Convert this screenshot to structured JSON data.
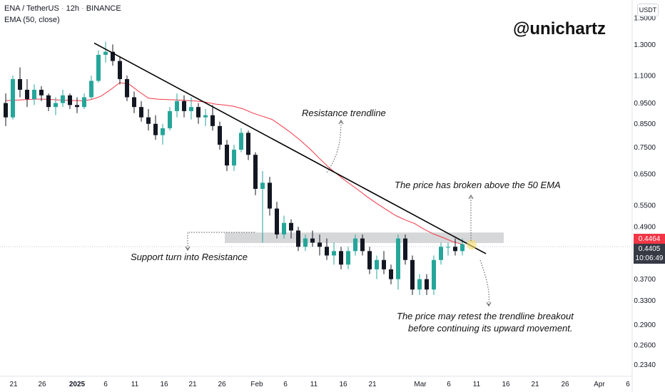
{
  "header": {
    "symbol": "ENA / TetherUS",
    "interval": "12h",
    "exchange": "BINANCE",
    "indicator": "EMA (50, close)"
  },
  "watermark": "@unichartz",
  "currency": "USDT",
  "price_labels": {
    "last": "0.4464",
    "current": "0.4405",
    "countdown": "10:06:49"
  },
  "colors": {
    "up": "#26a69a",
    "down": "#131722",
    "ema": "#f23645",
    "trendline": "#000000",
    "zone": "#c8c9cc"
  },
  "annotations": {
    "resistance_trendline": "Resistance trendline",
    "ema_break": "The price has broken above the 50 EMA",
    "support_resistance": "Support turn into Resistance",
    "retest_line1": "The price may retest the trendline breakout",
    "retest_line2": "before continuing its upward movement."
  },
  "chart_data": {
    "type": "candlestick",
    "y_scale": "log",
    "y_ticks": [
      "1.5000",
      "1.3000",
      "1.1000",
      "0.9500",
      "0.8500",
      "0.7500",
      "0.6500",
      "0.5500",
      "0.4900",
      "0.3700",
      "0.3300",
      "0.2900",
      "0.2600",
      "0.2340"
    ],
    "x_ticks": [
      "21",
      "26",
      "2025",
      "6",
      "11",
      "16",
      "21",
      "26",
      "Feb",
      "6",
      "11",
      "16",
      "21",
      "Mar",
      "6",
      "11",
      "16",
      "21",
      "26",
      "Apr",
      "6"
    ],
    "ylim": [
      0.225,
      1.6
    ],
    "ema_period": 50,
    "trendline": {
      "start": 1.31,
      "end": 0.424
    },
    "zone": {
      "top": 0.475,
      "bottom": 0.449
    },
    "ema": [
      0.962,
      0.965,
      0.967,
      0.97,
      0.97,
      0.967,
      0.965,
      0.963,
      0.962,
      0.968,
      0.985,
      1.02,
      1.06,
      1.05,
      1.01,
      0.975,
      0.97,
      0.968,
      0.966,
      0.963,
      0.96,
      0.955,
      0.945,
      0.94,
      0.933,
      0.92,
      0.9,
      0.885,
      0.87,
      0.84,
      0.81,
      0.777,
      0.742,
      0.705,
      0.672,
      0.645,
      0.62,
      0.598,
      0.575,
      0.555,
      0.537,
      0.52,
      0.508,
      0.498,
      0.483,
      0.471,
      0.462,
      0.452,
      0.446
    ],
    "candles": [
      [
        0.95,
        1.0,
        0.84,
        0.88
      ],
      [
        0.88,
        1.1,
        0.87,
        1.08
      ],
      [
        1.08,
        1.15,
        0.98,
        1.02
      ],
      [
        1.02,
        1.08,
        0.93,
        0.97
      ],
      [
        0.97,
        1.05,
        0.94,
        1.02
      ],
      [
        1.02,
        1.04,
        0.96,
        0.99
      ],
      [
        0.99,
        1.0,
        0.91,
        0.93
      ],
      [
        0.93,
        0.98,
        0.89,
        0.95
      ],
      [
        0.95,
        1.02,
        0.93,
        0.99
      ],
      [
        0.99,
        1.0,
        0.92,
        0.94
      ],
      [
        0.94,
        0.98,
        0.9,
        0.93
      ],
      [
        0.93,
        1.0,
        0.92,
        0.98
      ],
      [
        0.98,
        1.1,
        0.97,
        1.07
      ],
      [
        1.07,
        1.26,
        1.06,
        1.23
      ],
      [
        1.23,
        1.32,
        1.18,
        1.25
      ],
      [
        1.25,
        1.3,
        1.16,
        1.19
      ],
      [
        1.19,
        1.22,
        1.05,
        1.08
      ],
      [
        1.08,
        1.1,
        0.96,
        0.98
      ],
      [
        0.98,
        1.01,
        0.9,
        0.93
      ],
      [
        0.93,
        0.96,
        0.86,
        0.88
      ],
      [
        0.88,
        0.92,
        0.82,
        0.85
      ],
      [
        0.85,
        0.89,
        0.78,
        0.8
      ],
      [
        0.8,
        0.85,
        0.76,
        0.83
      ],
      [
        0.83,
        0.93,
        0.82,
        0.91
      ],
      [
        0.91,
        1.0,
        0.88,
        0.96
      ],
      [
        0.96,
        0.99,
        0.88,
        0.91
      ],
      [
        0.91,
        0.98,
        0.87,
        0.93
      ],
      [
        0.93,
        0.95,
        0.85,
        0.88
      ],
      [
        0.88,
        0.92,
        0.84,
        0.89
      ],
      [
        0.89,
        0.94,
        0.82,
        0.84
      ],
      [
        0.84,
        0.86,
        0.74,
        0.76
      ],
      [
        0.76,
        0.78,
        0.66,
        0.68
      ],
      [
        0.68,
        0.76,
        0.66,
        0.74
      ],
      [
        0.74,
        0.83,
        0.73,
        0.81
      ],
      [
        0.81,
        0.82,
        0.7,
        0.72
      ],
      [
        0.72,
        0.73,
        0.58,
        0.6
      ],
      [
        0.6,
        0.66,
        0.45,
        0.62
      ],
      [
        0.62,
        0.64,
        0.52,
        0.54
      ],
      [
        0.54,
        0.56,
        0.46,
        0.47
      ],
      [
        0.47,
        0.52,
        0.46,
        0.5
      ],
      [
        0.5,
        0.51,
        0.46,
        0.48
      ],
      [
        0.48,
        0.49,
        0.43,
        0.44
      ],
      [
        0.44,
        0.47,
        0.43,
        0.46
      ],
      [
        0.46,
        0.48,
        0.44,
        0.45
      ],
      [
        0.45,
        0.47,
        0.42,
        0.44
      ],
      [
        0.44,
        0.46,
        0.41,
        0.42
      ],
      [
        0.42,
        0.45,
        0.4,
        0.43
      ],
      [
        0.43,
        0.44,
        0.39,
        0.4
      ],
      [
        0.4,
        0.44,
        0.39,
        0.43
      ],
      [
        0.43,
        0.47,
        0.42,
        0.46
      ],
      [
        0.46,
        0.47,
        0.42,
        0.43
      ],
      [
        0.43,
        0.44,
        0.38,
        0.39
      ],
      [
        0.39,
        0.42,
        0.37,
        0.41
      ],
      [
        0.41,
        0.43,
        0.38,
        0.39
      ],
      [
        0.39,
        0.4,
        0.36,
        0.37
      ],
      [
        0.37,
        0.47,
        0.35,
        0.46
      ],
      [
        0.46,
        0.47,
        0.4,
        0.41
      ],
      [
        0.41,
        0.42,
        0.34,
        0.35
      ],
      [
        0.35,
        0.38,
        0.34,
        0.37
      ],
      [
        0.37,
        0.38,
        0.34,
        0.35
      ],
      [
        0.35,
        0.42,
        0.34,
        0.41
      ],
      [
        0.41,
        0.45,
        0.4,
        0.44
      ],
      [
        0.44,
        0.45,
        0.42,
        0.44
      ],
      [
        0.44,
        0.46,
        0.42,
        0.43
      ],
      [
        0.43,
        0.46,
        0.42,
        0.4464
      ]
    ]
  }
}
